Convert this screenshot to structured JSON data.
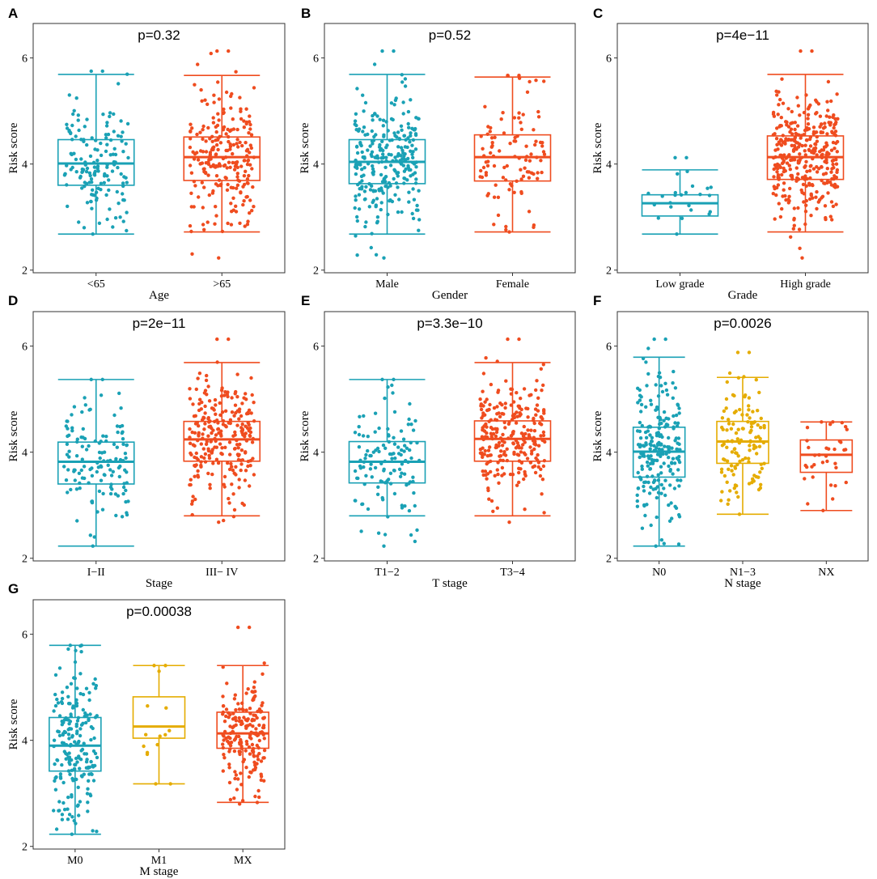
{
  "chart_data": [
    {
      "type": "box",
      "panel": "A",
      "pvalue": "p=0.32",
      "ylabel": "Risk score",
      "xlabel": "Age",
      "ylim": [
        1.95,
        6.65
      ],
      "yticks": [
        2,
        4,
        6
      ],
      "groups": [
        {
          "label": "<65",
          "color": "#1aa1b5",
          "min": 2.68,
          "q1": 3.6,
          "median": 4.01,
          "q3": 4.46,
          "max": 5.69,
          "jitter_range": [
            2.68,
            5.75
          ],
          "n": 150
        },
        {
          "label": ">65",
          "color": "#ef4c1f",
          "min": 2.72,
          "q1": 3.69,
          "median": 4.13,
          "q3": 4.51,
          "max": 5.67,
          "jitter_range": [
            2.23,
            6.13
          ],
          "n": 230
        }
      ]
    },
    {
      "type": "box",
      "panel": "B",
      "pvalue": "p=0.52",
      "ylabel": "Risk score",
      "xlabel": "Gender",
      "ylim": [
        1.95,
        6.65
      ],
      "yticks": [
        2,
        4,
        6
      ],
      "groups": [
        {
          "label": "Male",
          "color": "#1aa1b5",
          "min": 2.68,
          "q1": 3.63,
          "median": 4.04,
          "q3": 4.46,
          "max": 5.69,
          "jitter_range": [
            2.23,
            6.13
          ],
          "n": 270
        },
        {
          "label": "Female",
          "color": "#ef4c1f",
          "min": 2.72,
          "q1": 3.68,
          "median": 4.13,
          "q3": 4.55,
          "max": 5.64,
          "jitter_range": [
            2.72,
            5.67
          ],
          "n": 100
        }
      ]
    },
    {
      "type": "box",
      "panel": "C",
      "pvalue": "p=4e−11",
      "ylabel": "Risk score",
      "xlabel": "Grade",
      "ylim": [
        1.95,
        6.65
      ],
      "yticks": [
        2,
        4,
        6
      ],
      "groups": [
        {
          "label": "Low grade",
          "color": "#1aa1b5",
          "min": 2.68,
          "q1": 3.02,
          "median": 3.26,
          "q3": 3.42,
          "max": 3.89,
          "jitter_range": [
            2.68,
            4.12
          ],
          "n": 22
        },
        {
          "label": "High grade",
          "color": "#ef4c1f",
          "min": 2.72,
          "q1": 3.71,
          "median": 4.13,
          "q3": 4.53,
          "max": 5.69,
          "jitter_range": [
            2.23,
            6.13
          ],
          "n": 350
        }
      ]
    },
    {
      "type": "box",
      "panel": "D",
      "pvalue": "p=2e−11",
      "ylabel": "Risk score",
      "xlabel": "Stage",
      "ylim": [
        1.95,
        6.65
      ],
      "yticks": [
        2,
        4,
        6
      ],
      "groups": [
        {
          "label": "I−II",
          "color": "#1aa1b5",
          "min": 2.23,
          "q1": 3.4,
          "median": 3.82,
          "q3": 4.19,
          "max": 5.37,
          "jitter_range": [
            2.23,
            5.37
          ],
          "n": 130
        },
        {
          "label": "III− IV",
          "color": "#ef4c1f",
          "min": 2.8,
          "q1": 3.83,
          "median": 4.24,
          "q3": 4.58,
          "max": 5.69,
          "jitter_range": [
            2.68,
            6.13
          ],
          "n": 250
        }
      ]
    },
    {
      "type": "box",
      "panel": "E",
      "pvalue": "p=3.3e−10",
      "ylabel": "Risk score",
      "xlabel": "T stage",
      "ylim": [
        1.95,
        6.65
      ],
      "yticks": [
        2,
        4,
        6
      ],
      "groups": [
        {
          "label": "T1−2",
          "color": "#1aa1b5",
          "min": 2.8,
          "q1": 3.42,
          "median": 3.82,
          "q3": 4.2,
          "max": 5.37,
          "jitter_range": [
            2.23,
            5.37
          ],
          "n": 120
        },
        {
          "label": "T3−4",
          "color": "#ef4c1f",
          "min": 2.8,
          "q1": 3.83,
          "median": 4.25,
          "q3": 4.59,
          "max": 5.69,
          "jitter_range": [
            2.68,
            6.13
          ],
          "n": 260
        }
      ]
    },
    {
      "type": "box",
      "panel": "F",
      "pvalue": "p=0.0026",
      "ylabel": "Risk score",
      "xlabel": "N stage",
      "ylim": [
        1.95,
        6.65
      ],
      "yticks": [
        2,
        4,
        6
      ],
      "groups": [
        {
          "label": "N0",
          "color": "#1aa1b5",
          "min": 2.23,
          "q1": 3.53,
          "median": 4.01,
          "q3": 4.47,
          "max": 5.79,
          "jitter_range": [
            2.23,
            6.13
          ],
          "n": 220
        },
        {
          "label": "N1−3",
          "color": "#e5ac00",
          "min": 2.83,
          "q1": 3.79,
          "median": 4.2,
          "q3": 4.58,
          "max": 5.41,
          "jitter_range": [
            2.83,
            5.88
          ],
          "n": 120
        },
        {
          "label": "NX",
          "color": "#ef4c1f",
          "min": 2.9,
          "q1": 3.62,
          "median": 3.95,
          "q3": 4.23,
          "max": 4.57,
          "jitter_range": [
            2.9,
            4.57
          ],
          "n": 32
        }
      ]
    },
    {
      "type": "box",
      "panel": "G",
      "pvalue": "p=0.00038",
      "ylabel": "Risk score",
      "xlabel": "M stage",
      "ylim": [
        1.95,
        6.65
      ],
      "yticks": [
        2,
        4,
        6
      ],
      "groups": [
        {
          "label": "M0",
          "color": "#1aa1b5",
          "min": 2.23,
          "q1": 3.42,
          "median": 3.9,
          "q3": 4.43,
          "max": 5.79,
          "jitter_range": [
            2.23,
            5.79
          ],
          "n": 200
        },
        {
          "label": "M1",
          "color": "#e5ac00",
          "min": 3.18,
          "q1": 4.04,
          "median": 4.26,
          "q3": 4.82,
          "max": 5.41,
          "jitter_range": [
            3.18,
            5.41
          ],
          "n": 12
        },
        {
          "label": "MX",
          "color": "#ef4c1f",
          "min": 2.83,
          "q1": 3.85,
          "median": 4.13,
          "q3": 4.53,
          "max": 5.41,
          "jitter_range": [
            2.8,
            6.13
          ],
          "n": 190
        }
      ]
    }
  ]
}
